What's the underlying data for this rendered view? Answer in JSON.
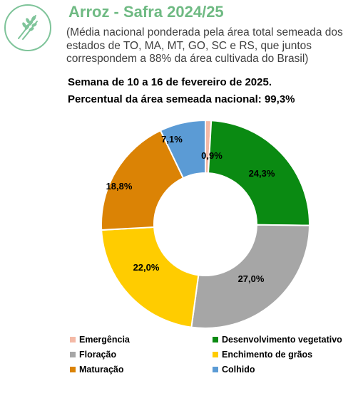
{
  "header": {
    "title": "Arroz - Safra 2024/25",
    "subtitle": "(Média nacional ponderada pela área total semeada dos estados de TO, MA, MT, GO, SC e RS, que juntos correspondem a 88% da área cultivada do Brasil)",
    "week": "Semana de 10 a 16 de fevereiro de 2025.",
    "percent_sown": "Percentual da área semeada nacional: 99,3%"
  },
  "icons": {
    "logo": "rice-plant-icon"
  },
  "chart_data": {
    "type": "pie",
    "donut": true,
    "series": [
      {
        "name": "Emergência",
        "value": 0.9,
        "label": "0,9%",
        "color": "#f4b9a6"
      },
      {
        "name": "Desenvolvimento vegetativo",
        "value": 24.3,
        "label": "24,3%",
        "color": "#0a8a12"
      },
      {
        "name": "Floração",
        "value": 27.0,
        "label": "27,0%",
        "color": "#a6a6a6"
      },
      {
        "name": "Enchimento de grãos",
        "value": 22.0,
        "label": "22,0%",
        "color": "#ffcc00"
      },
      {
        "name": "Maturação",
        "value": 18.8,
        "label": "18,8%",
        "color": "#db8305"
      },
      {
        "name": "Colhido",
        "value": 7.1,
        "label": "7,1%",
        "color": "#5b9bd5"
      }
    ],
    "legend_position": "bottom"
  }
}
